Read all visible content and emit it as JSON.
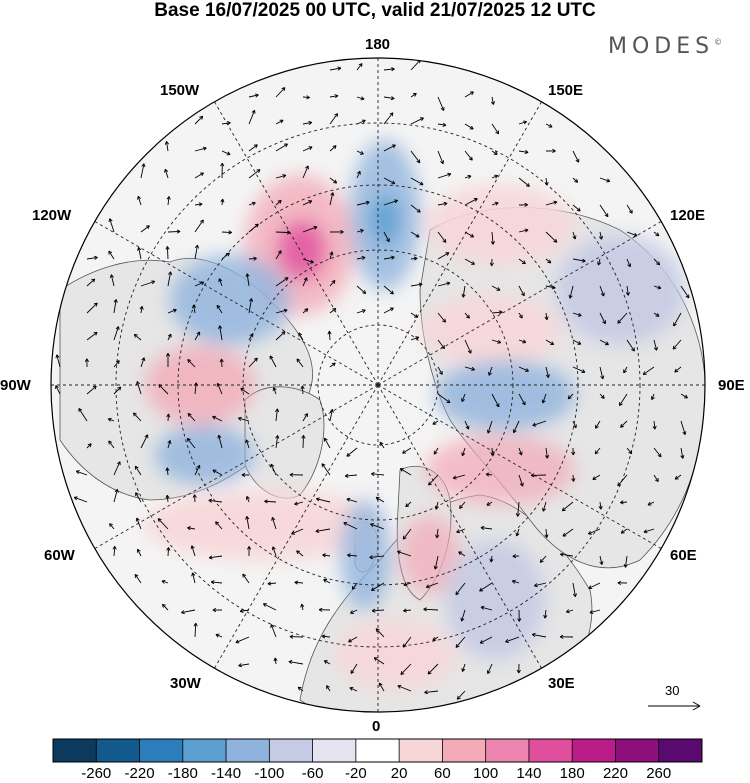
{
  "title": "Base 16/07/2025 00 UTC, valid 21/07/2025 12 UTC",
  "brand": "MODES",
  "brand_mark": "©",
  "longitude_labels": {
    "top": "180",
    "bottom": "0",
    "left": "90W",
    "right": "90E",
    "w150": "150W",
    "e150": "150E",
    "w120": "120W",
    "e120": "120E",
    "w60": "60W",
    "e60": "60E",
    "w30": "30W",
    "e30": "30E"
  },
  "reference_vector": "30",
  "colorbar": {
    "ticks": [
      "-260",
      "-220",
      "-180",
      "-140",
      "-100",
      "-60",
      "-20",
      "20",
      "60",
      "100",
      "140",
      "180",
      "220",
      "260"
    ],
    "colors": [
      "#0b3a5e",
      "#12598e",
      "#2b7dbb",
      "#5a9fd0",
      "#8fb3dd",
      "#c5cbe4",
      "#e6e4f1",
      "#ffffff",
      "#f7d6d8",
      "#f3abb8",
      "#ec86b0",
      "#e04e9e",
      "#bb1d88",
      "#8e0f7c",
      "#5a0a6e"
    ]
  },
  "colors": {
    "land": "#e9e9e9",
    "ocean": "#f4f4f4",
    "coast": "#555555"
  }
}
